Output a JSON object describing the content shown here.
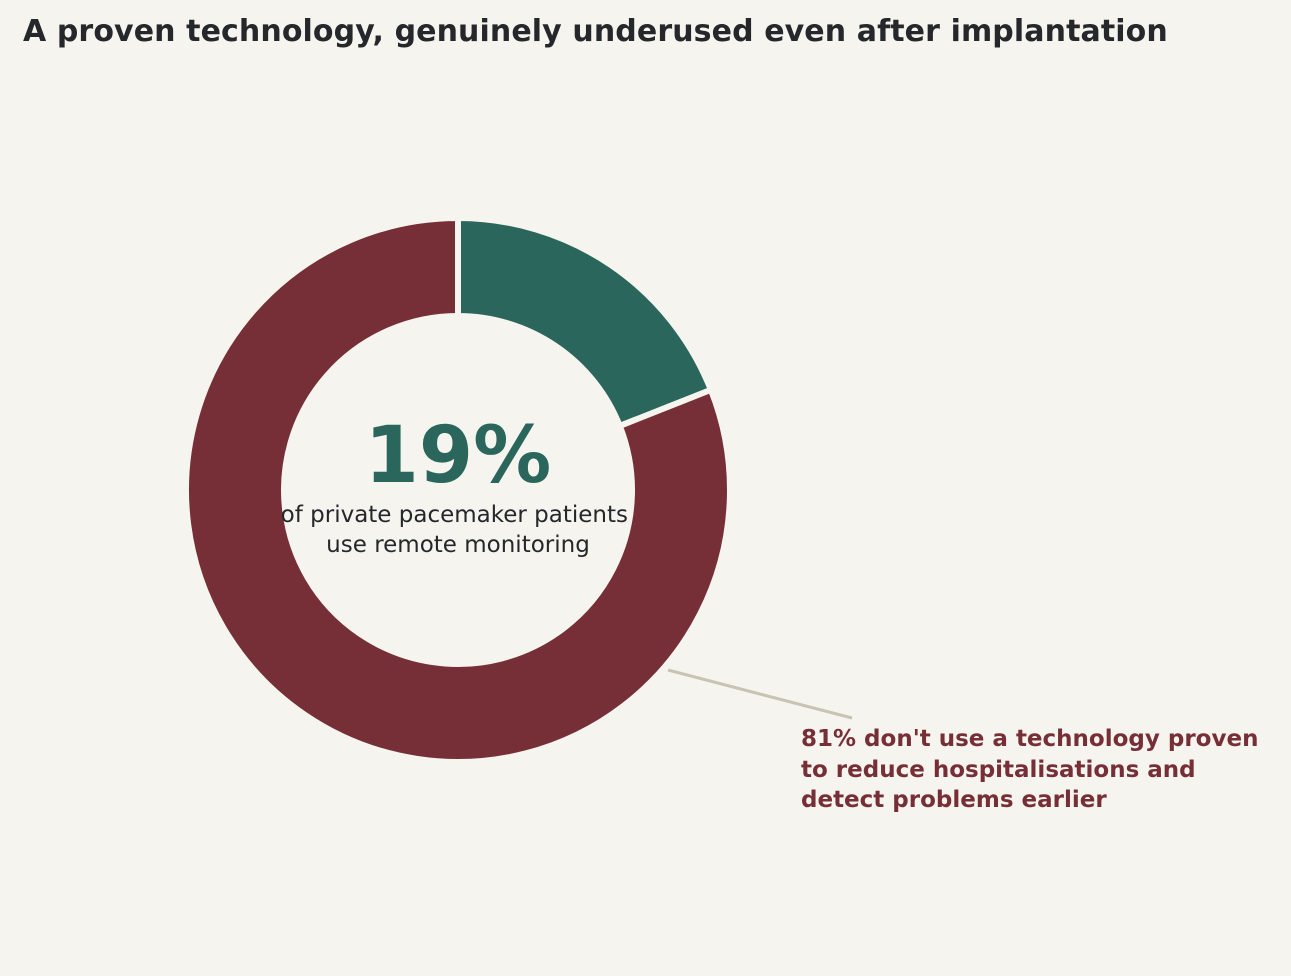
{
  "title": "A proven technology, genuinely underused even after implantation",
  "colors": {
    "background": "#f5f4ef",
    "highlight": "#2a665b",
    "remainder": "#772f37",
    "title_text": "#25272b",
    "caption_text": "#25272b",
    "leader_line": "#c9c3b3"
  },
  "center": {
    "value": "19%",
    "caption_lines": [
      "of private pacemaker patients",
      "use remote monitoring"
    ]
  },
  "annotation": {
    "lines": [
      "81% don't use a technology proven",
      "to reduce hospitalisations and",
      "detect problems earlier"
    ]
  },
  "chart_data": {
    "type": "pie",
    "title": "A proven technology, genuinely underused even after implantation",
    "donut": true,
    "unit": "%",
    "slices": [
      {
        "label": "use remote monitoring",
        "value": 19,
        "color": "#2a665b"
      },
      {
        "label": "don't use remote monitoring",
        "value": 81,
        "color": "#772f37"
      }
    ]
  }
}
